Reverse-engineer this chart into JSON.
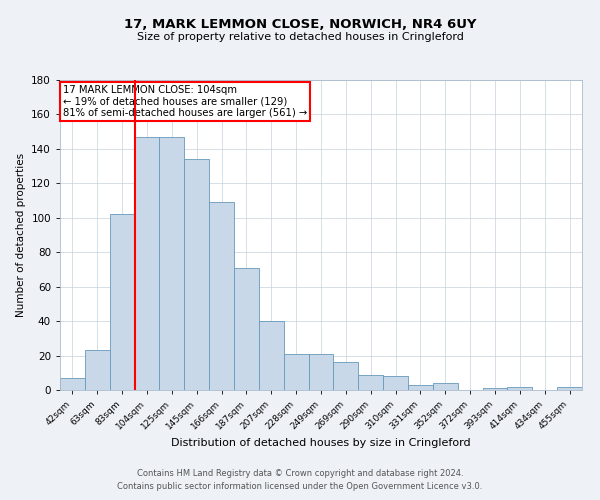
{
  "title": "17, MARK LEMMON CLOSE, NORWICH, NR4 6UY",
  "subtitle": "Size of property relative to detached houses in Cringleford",
  "xlabel": "Distribution of detached houses by size in Cringleford",
  "ylabel": "Number of detached properties",
  "categories": [
    "42sqm",
    "63sqm",
    "83sqm",
    "104sqm",
    "125sqm",
    "145sqm",
    "166sqm",
    "187sqm",
    "207sqm",
    "228sqm",
    "249sqm",
    "269sqm",
    "290sqm",
    "310sqm",
    "331sqm",
    "352sqm",
    "372sqm",
    "393sqm",
    "414sqm",
    "434sqm",
    "455sqm"
  ],
  "values": [
    7,
    23,
    102,
    147,
    147,
    134,
    109,
    71,
    40,
    21,
    21,
    16,
    9,
    8,
    3,
    4,
    0,
    1,
    2,
    0,
    2
  ],
  "bar_color": "#c8d8e8",
  "bar_edge_color": "#6699bb",
  "red_line_index": 3,
  "red_line_label": "17 MARK LEMMON CLOSE: 104sqm",
  "annotation_line1": "← 19% of detached houses are smaller (129)",
  "annotation_line2": "81% of semi-detached houses are larger (561) →",
  "ylim": [
    0,
    180
  ],
  "yticks": [
    0,
    20,
    40,
    60,
    80,
    100,
    120,
    140,
    160,
    180
  ],
  "footer_line1": "Contains HM Land Registry data © Crown copyright and database right 2024.",
  "footer_line2": "Contains public sector information licensed under the Open Government Licence v3.0.",
  "background_color": "#eef2f7",
  "plot_background": "#ffffff",
  "grid_color": "#c5d0dc"
}
